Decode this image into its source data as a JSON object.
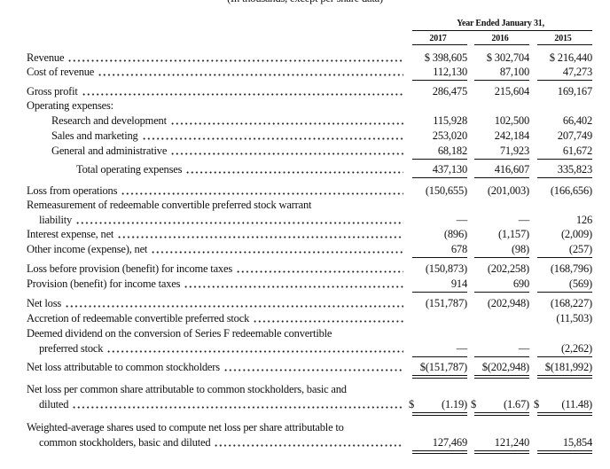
{
  "header": {
    "subtitle": "(In thousands, except per share data)",
    "period": "Year Ended January 31,",
    "years": [
      "2017",
      "2016",
      "2015"
    ]
  },
  "table": {
    "rows": [
      {
        "label": [
          "Revenue"
        ],
        "cells": [
          "$ 398,605",
          "$ 302,704",
          "$ 216,440"
        ]
      },
      {
        "label": [
          "Cost of revenue"
        ],
        "cells": [
          "112,130",
          "87,100",
          "47,273"
        ]
      },
      {
        "label": [
          "Gross profit"
        ],
        "cells": [
          "286,475",
          "215,604",
          "169,167"
        ]
      },
      {
        "label": [
          "Operating expenses:"
        ]
      },
      {
        "label": [
          "Research and development"
        ],
        "cells": [
          "115,928",
          "102,500",
          "66,402"
        ]
      },
      {
        "label": [
          "Sales and marketing"
        ],
        "cells": [
          "253,020",
          "242,184",
          "207,749"
        ]
      },
      {
        "label": [
          "General and administrative"
        ],
        "cells": [
          "68,182",
          "71,923",
          "61,672"
        ]
      },
      {
        "label": [
          "Total operating expenses"
        ],
        "cells": [
          "437,130",
          "416,607",
          "335,823"
        ]
      },
      {
        "label": [
          "Loss from operations"
        ],
        "cells": [
          "(150,655)",
          "(201,003)",
          "(166,656)"
        ]
      },
      {
        "label": [
          "Remeasurement of redeemable convertible preferred stock warrant",
          "liability"
        ],
        "cells": [
          "—",
          "—",
          "126"
        ]
      },
      {
        "label": [
          "Interest expense, net"
        ],
        "cells": [
          "(896)",
          "(1,157)",
          "(2,009)"
        ]
      },
      {
        "label": [
          "Other income (expense), net"
        ],
        "cells": [
          "678",
          "(98)",
          "(257)"
        ]
      },
      {
        "label": [
          "Loss before provision (benefit) for income taxes"
        ],
        "cells": [
          "(150,873)",
          "(202,258)",
          "(168,796)"
        ]
      },
      {
        "label": [
          "Provision (benefit) for income taxes"
        ],
        "cells": [
          "914",
          "690",
          "(569)"
        ]
      },
      {
        "label": [
          "Net loss"
        ],
        "cells": [
          "(151,787)",
          "(202,948)",
          "(168,227)"
        ]
      },
      {
        "label": [
          "Accretion of redeemable convertible preferred stock"
        ],
        "cells": [
          null,
          null,
          "(11,503)"
        ]
      },
      {
        "label": [
          "Deemed dividend on the conversion of Series F redeemable convertible",
          "preferred stock"
        ],
        "cells": [
          "—",
          "—",
          "(2,262)"
        ]
      },
      {
        "label": [
          "Net loss attributable to common stockholders"
        ],
        "cells": [
          "$(151,787)",
          "$(202,948)",
          "$(181,992)"
        ]
      },
      {
        "label": [
          "Net loss per common share attributable to common stockholders, basic and",
          "diluted"
        ],
        "cells": [
          {
            "symbol": "$",
            "amount": "(1.19)"
          },
          {
            "symbol": "$",
            "amount": "(1.67)"
          },
          {
            "symbol": "$",
            "amount": "(11.48)"
          }
        ]
      },
      {
        "label": [
          "Weighted-average shares used to compute net loss per share attributable to",
          "common stockholders, basic and diluted"
        ],
        "cells": [
          "127,469",
          "121,240",
          "15,854"
        ]
      }
    ]
  }
}
